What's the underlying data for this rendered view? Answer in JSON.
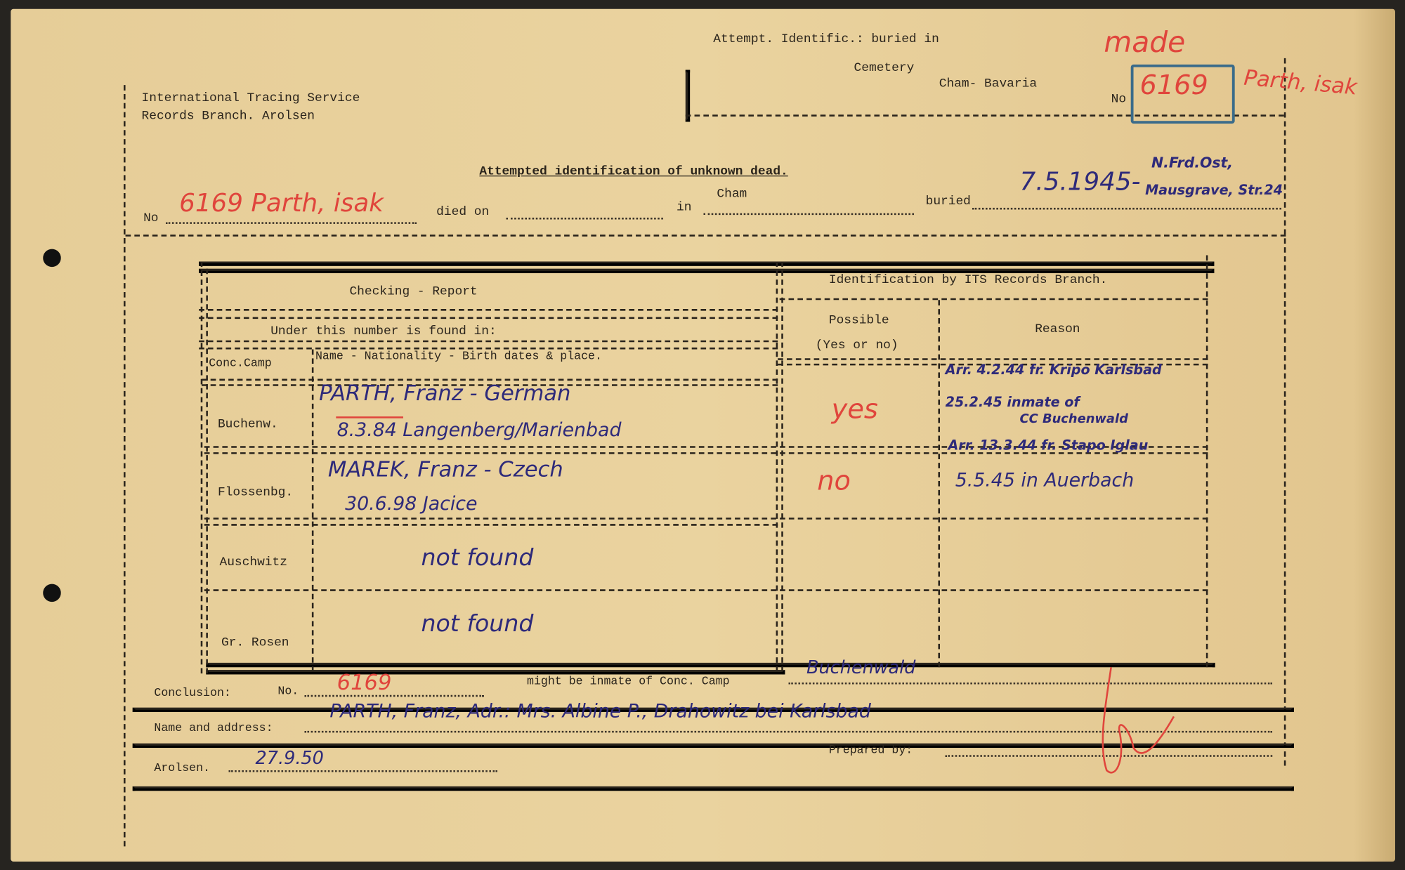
{
  "header": {
    "org_line1": "International Tracing Service",
    "org_line2": "Records Branch. Arolsen",
    "attempt_label": "Attempt. Identific.: buried in",
    "cemetery_label": "Cemetery",
    "cemetery_place": "Cham- Bavaria",
    "no_label": "No",
    "no_value": "6169",
    "made_note": "made",
    "name_note": "Parth, isak"
  },
  "title": "Attempted identification of unknown dead.",
  "record": {
    "no_label": "No",
    "no_value": "6169 Parth, isak",
    "died_on_label": "died on",
    "in_label": "in",
    "in_value": "Cham",
    "buried_label": "buried",
    "buried_date": "7.5.1945-",
    "buried_place_line1": "N.Frd.Ost,",
    "buried_place_line2": "Mausgrave, Str.24"
  },
  "table": {
    "checking_header": "Checking - Report",
    "identification_header": "Identification by ITS Records Branch.",
    "under_number": "Under this number is found in:",
    "col_camp": "Conc.Camp",
    "col_name": "Name - Nationality - Birth dates & place.",
    "col_possible_1": "Possible",
    "col_possible_2": "(Yes or no)",
    "col_reason": "Reason",
    "rows": [
      {
        "camp": "Buchenw.",
        "name_line1": "PARTH, Franz  - German",
        "name_line2": "8.3.84  Langenberg/Marienbad",
        "possible": "yes",
        "reason_line1": "Arr. 4.2.44 fr. Kripo Karlsbad",
        "reason_line2": "25.2.45 inmate of",
        "reason_line3": "CC Buchenwald"
      },
      {
        "camp": "Flossenbg.",
        "name_line1": "MAREK, Franz  - Czech",
        "name_line2": "30.6.98  Jacice",
        "possible": "no",
        "reason_line1": "Arr. 13.3.44 fr. Stapo Iglau",
        "reason_line2": "5.5.45 in Auerbach",
        "reason_line3": ""
      },
      {
        "camp": "Auschwitz",
        "name_line1": "not found",
        "name_line2": "",
        "possible": "",
        "reason_line1": "",
        "reason_line2": "",
        "reason_line3": ""
      },
      {
        "camp": "Gr. Rosen",
        "name_line1": "not found",
        "name_line2": "",
        "possible": "",
        "reason_line1": "",
        "reason_line2": "",
        "reason_line3": ""
      }
    ]
  },
  "conclusion": {
    "label": "Conclusion:",
    "no_label": "No.",
    "no_value": "6169",
    "might_be": "might be inmate of Conc. Camp",
    "camp_value": "Buchenwald",
    "name_address_label": "Name and address:",
    "name_address_value": "PARTH, Franz,  Adr.: Mrs. Albine P., Drahowitz bei Karlsbad",
    "arolsen_label": "Arolsen.",
    "date_value": "27.9.50",
    "prepared_by_label": "Prepared by:"
  },
  "colors": {
    "paper": "#e8cf9b",
    "red_ink": "#e0453c",
    "blue_ink": "#2e2a7a",
    "type": "#2a241c"
  }
}
